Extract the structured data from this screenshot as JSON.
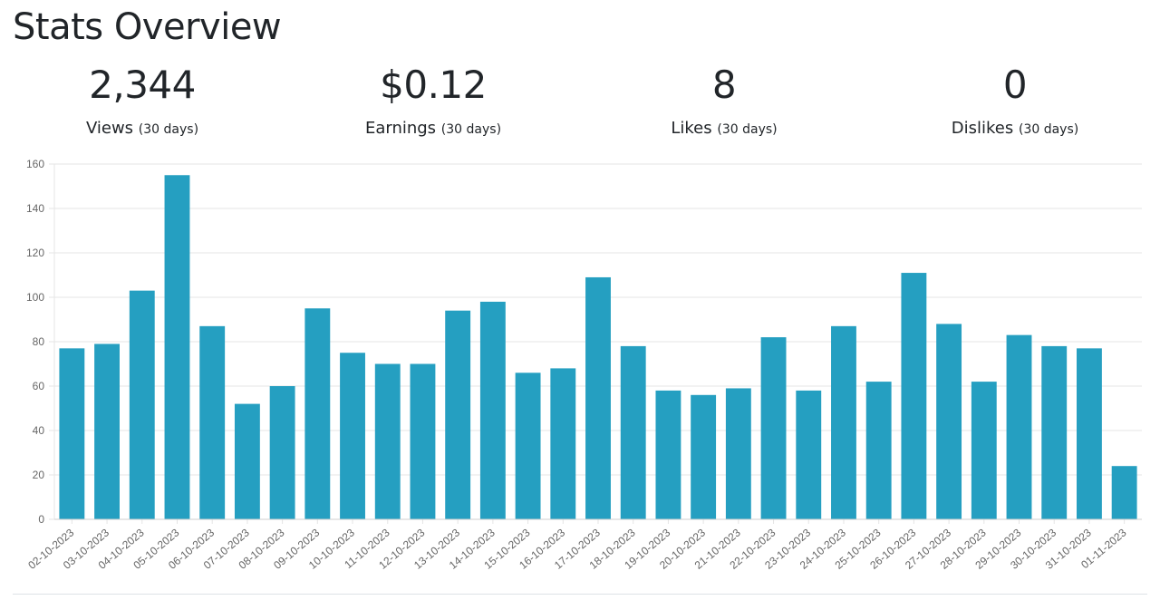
{
  "page": {
    "title": "Stats Overview"
  },
  "stats": [
    {
      "value": "2,344",
      "label": "Views",
      "period": "(30 days)"
    },
    {
      "value": "$0.12",
      "label": "Earnings",
      "period": "(30 days)"
    },
    {
      "value": "8",
      "label": "Likes",
      "period": "(30 days)"
    },
    {
      "value": "0",
      "label": "Dislikes",
      "period": "(30 days)"
    }
  ],
  "chart_data": {
    "type": "bar",
    "title": "",
    "xlabel": "",
    "ylabel": "",
    "ylim": [
      0,
      160
    ],
    "yticks": [
      0,
      20,
      40,
      60,
      80,
      100,
      120,
      140,
      160
    ],
    "grid": true,
    "bar_color": "#259fc1",
    "categories": [
      "02-10-2023",
      "03-10-2023",
      "04-10-2023",
      "05-10-2023",
      "06-10-2023",
      "07-10-2023",
      "08-10-2023",
      "09-10-2023",
      "10-10-2023",
      "11-10-2023",
      "12-10-2023",
      "13-10-2023",
      "14-10-2023",
      "15-10-2023",
      "16-10-2023",
      "17-10-2023",
      "18-10-2023",
      "19-10-2023",
      "20-10-2023",
      "21-10-2023",
      "22-10-2023",
      "23-10-2023",
      "24-10-2023",
      "25-10-2023",
      "26-10-2023",
      "27-10-2023",
      "28-10-2023",
      "29-10-2023",
      "30-10-2023",
      "31-10-2023",
      "01-11-2023"
    ],
    "values": [
      77,
      79,
      103,
      155,
      87,
      52,
      60,
      95,
      75,
      70,
      70,
      94,
      98,
      66,
      68,
      109,
      78,
      58,
      56,
      59,
      82,
      58,
      87,
      62,
      111,
      88,
      62,
      83,
      78,
      77,
      24
    ]
  }
}
